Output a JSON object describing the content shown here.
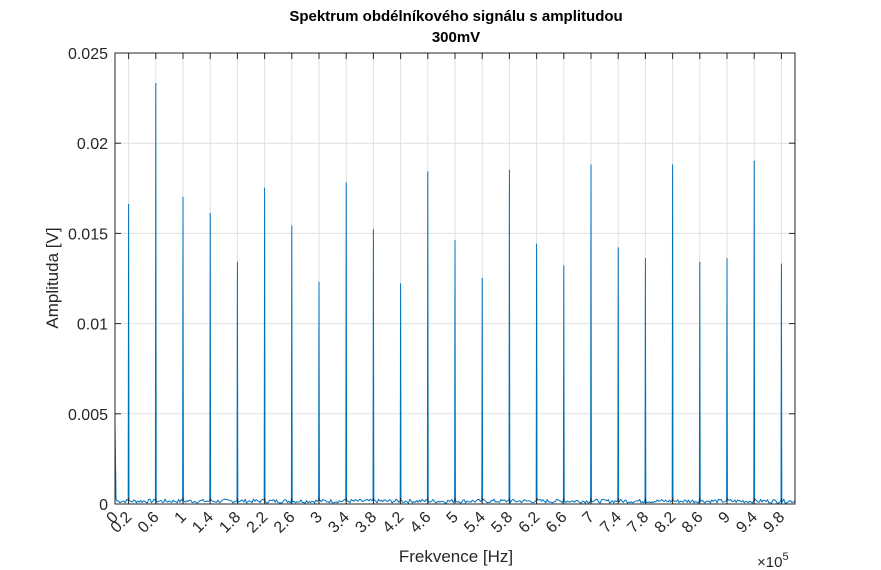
{
  "chart_data": {
    "type": "line",
    "title": "Spektrum obdélníkového signálu s amplitudou",
    "subtitle": "300mV",
    "xlabel": "Frekvence [Hz]",
    "ylabel": "Amplituda [V]",
    "x_exponent_label": "×10",
    "x_exponent_power": "5",
    "x_scale": 100000,
    "xlim": [
      0,
      1000000
    ],
    "ylim": [
      0,
      0.025
    ],
    "grid": true,
    "line_color": "#0072bd",
    "x_ticks": [
      "0",
      "0.2",
      "0.6",
      "1",
      "1.4",
      "1.8",
      "2.2",
      "2.6",
      "3",
      "3.4",
      "3.8",
      "4.2",
      "4.6",
      "5",
      "5.4",
      "5.8",
      "6.2",
      "6.6",
      "7",
      "7.4",
      "7.8",
      "8.2",
      "8.6",
      "9",
      "9.4",
      "9.8"
    ],
    "y_ticks": [
      "0",
      "0.005",
      "0.01",
      "0.015",
      "0.02",
      "0.025"
    ],
    "peaks": [
      {
        "x": 20000,
        "y": 0.0166
      },
      {
        "x": 60000,
        "y": 0.0233
      },
      {
        "x": 100000,
        "y": 0.017
      },
      {
        "x": 140000,
        "y": 0.0161
      },
      {
        "x": 180000,
        "y": 0.0134
      },
      {
        "x": 220000,
        "y": 0.0175
      },
      {
        "x": 260000,
        "y": 0.0154
      },
      {
        "x": 300000,
        "y": 0.0123
      },
      {
        "x": 340000,
        "y": 0.0178
      },
      {
        "x": 380000,
        "y": 0.0152
      },
      {
        "x": 420000,
        "y": 0.0122
      },
      {
        "x": 460000,
        "y": 0.0184
      },
      {
        "x": 500000,
        "y": 0.0146
      },
      {
        "x": 540000,
        "y": 0.0125
      },
      {
        "x": 580000,
        "y": 0.0185
      },
      {
        "x": 620000,
        "y": 0.0144
      },
      {
        "x": 660000,
        "y": 0.0132
      },
      {
        "x": 700000,
        "y": 0.0188
      },
      {
        "x": 740000,
        "y": 0.0142
      },
      {
        "x": 780000,
        "y": 0.0136
      },
      {
        "x": 820000,
        "y": 0.0188
      },
      {
        "x": 860000,
        "y": 0.0134
      },
      {
        "x": 900000,
        "y": 0.0136
      },
      {
        "x": 940000,
        "y": 0.019
      },
      {
        "x": 980000,
        "y": 0.0133
      }
    ]
  }
}
